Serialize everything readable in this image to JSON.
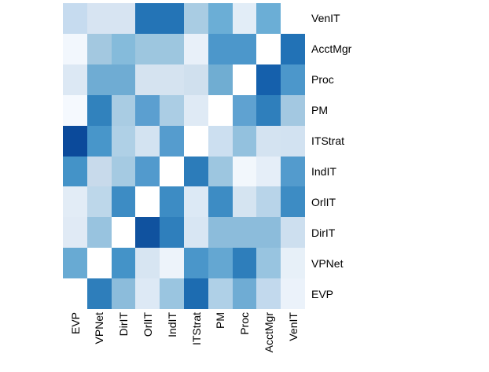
{
  "figure": {
    "background": "#FFFFFF",
    "text_color": "#000000"
  },
  "chart_data": {
    "type": "heatmap",
    "title": "",
    "legend": "none",
    "grid_lines": false,
    "colormap": {
      "name": "Blues",
      "low": "#FFFFFF",
      "high": "#08519C"
    },
    "diagonal_note": "self-pair cells are white; diagonal runs bottom-left to top-right",
    "x_axis": {
      "position": "bottom",
      "label_rotation_deg": -90,
      "labels_left_to_right": [
        "EVP",
        "VPNet",
        "DirIT",
        "OrlIT",
        "IndIT",
        "ITStrat",
        "PM",
        "Proc",
        "AcctMgr",
        "VenIT"
      ]
    },
    "y_axis": {
      "position": "right",
      "labels_top_to_bottom": [
        "VenIT",
        "AcctMgr",
        "Proc",
        "PM",
        "ITStrat",
        "IndIT",
        "OrlIT",
        "DirIT",
        "VPNet",
        "EVP"
      ]
    },
    "cell_colors": [
      [
        "#C6DBEF",
        "#D7E4F2",
        "#D7E4F2",
        "#2474B6",
        "#2474B6",
        "#A9CCE3",
        "#6BAED6",
        "#E2EDF7",
        "#6BAED6",
        "#FFFFFF"
      ],
      [
        "#F2F7FD",
        "#A3C8E0",
        "#85BBDB",
        "#9DC6DF",
        "#9DC6DF",
        "#E8F0F9",
        "#4C97CB",
        "#4C97CB",
        "#FFFFFF",
        "#2272B6"
      ],
      [
        "#DCE8F4",
        "#6FACD3",
        "#6FACD3",
        "#D5E3F0",
        "#D5E3F0",
        "#D0E0EE",
        "#70ADD2",
        "#FFFFFF",
        "#1560AC",
        "#4C97CB"
      ],
      [
        "#F5F9FE",
        "#3182BD",
        "#A9CCE3",
        "#5B9FD0",
        "#ABCDE4",
        "#DFEAF5",
        "#FFFFFF",
        "#5FA2D1",
        "#2F7FBC",
        "#A3C8E1"
      ],
      [
        "#0B4A9B",
        "#4896CA",
        "#AFD0E6",
        "#D3E3F1",
        "#559CCE",
        "#FFFFFF",
        "#CCDFF0",
        "#93C1DE",
        "#D4E3F1",
        "#D2E2F1"
      ],
      [
        "#4493C8",
        "#C8DAEB",
        "#A5CAE2",
        "#529ACD",
        "#FFFFFF",
        "#2C7CBA",
        "#9DC6E0",
        "#F2F7FC",
        "#E5EEF8",
        "#539BCD"
      ],
      [
        "#E2ECF6",
        "#BDD7EA",
        "#3D8CC4",
        "#FFFFFF",
        "#3D8CC4",
        "#DCE9F5",
        "#3D8CC4",
        "#D5E4F1",
        "#B8D4E9",
        "#3D8CC4"
      ],
      [
        "#E0EAF5",
        "#98C3DF",
        "#FFFFFF",
        "#10529F",
        "#2F7FBC",
        "#D8E6F3",
        "#8CBCDB",
        "#8CBCDB",
        "#8CBCDB",
        "#CDDFEF"
      ],
      [
        "#68AAD3",
        "#FFFFFF",
        "#4493C8",
        "#D7E5F2",
        "#EDF3FA",
        "#4A96CA",
        "#64A7D2",
        "#2E7EBB",
        "#98C4E0",
        "#E7F0F8"
      ],
      [
        "#FFFFFF",
        "#2E7EBB",
        "#8CBCDB",
        "#DDE9F5",
        "#9AC5E0",
        "#1D6CB1",
        "#AFD0E7",
        "#6FACD4",
        "#C2D9ED",
        "#EBF2FA"
      ]
    ],
    "cell_values_est_0_to_1": [
      [
        0.25,
        0.15,
        0.15,
        0.75,
        0.75,
        0.35,
        0.5,
        0.1,
        0.5,
        0.0
      ],
      [
        0.04,
        0.37,
        0.44,
        0.39,
        0.39,
        0.08,
        0.58,
        0.58,
        0.0,
        0.76
      ],
      [
        0.13,
        0.5,
        0.5,
        0.16,
        0.16,
        0.18,
        0.5,
        0.0,
        0.85,
        0.58
      ],
      [
        0.03,
        0.7,
        0.35,
        0.54,
        0.34,
        0.11,
        0.0,
        0.53,
        0.71,
        0.37
      ],
      [
        0.95,
        0.59,
        0.33,
        0.16,
        0.56,
        0.0,
        0.2,
        0.41,
        0.16,
        0.17
      ],
      [
        0.6,
        0.24,
        0.36,
        0.56,
        0.0,
        0.72,
        0.39,
        0.04,
        0.09,
        0.56
      ],
      [
        0.1,
        0.28,
        0.64,
        0.0,
        0.64,
        0.13,
        0.64,
        0.16,
        0.3,
        0.64
      ],
      [
        0.11,
        0.4,
        0.0,
        0.9,
        0.71,
        0.15,
        0.42,
        0.42,
        0.42,
        0.18
      ],
      [
        0.51,
        0.0,
        0.6,
        0.15,
        0.06,
        0.58,
        0.52,
        0.71,
        0.4,
        0.08
      ],
      [
        0.0,
        0.71,
        0.43,
        0.12,
        0.39,
        0.8,
        0.33,
        0.5,
        0.26,
        0.07
      ]
    ]
  }
}
